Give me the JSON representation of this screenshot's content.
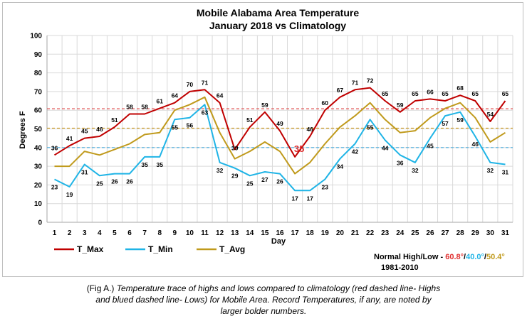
{
  "chart_data": {
    "type": "line",
    "title": "Mobile Alabama Area Temperature",
    "subtitle": "January 2018 vs Climatology",
    "xlabel": "Day",
    "ylabel": "Degrees F",
    "ylim": [
      0,
      100
    ],
    "yticks": [
      "0",
      "10",
      "20",
      "30",
      "40",
      "50",
      "60",
      "70",
      "80",
      "90",
      "100"
    ],
    "x": [
      "1",
      "2",
      "3",
      "4",
      "5",
      "6",
      "7",
      "8",
      "9",
      "10",
      "11",
      "12",
      "13",
      "14",
      "15",
      "16",
      "17",
      "18",
      "19",
      "20",
      "21",
      "22",
      "23",
      "24",
      "25",
      "26",
      "27",
      "28",
      "29",
      "30",
      "31"
    ],
    "grid": true,
    "legend_position": "bottom-left",
    "series": [
      {
        "name": "T_Max",
        "color": "#c00000",
        "values": [
          36,
          41,
          45,
          46,
          51,
          58,
          58,
          61,
          64,
          70,
          71,
          64,
          39,
          51,
          59,
          49,
          35,
          46,
          60,
          67,
          71,
          72,
          65,
          59,
          65,
          66,
          65,
          68,
          65,
          54,
          65
        ],
        "labels": [
          "36",
          "41",
          "45",
          "46",
          "51",
          "58",
          "58",
          "61",
          "64",
          "70",
          "71",
          "64",
          "39",
          "51",
          "59",
          "49",
          "35",
          "46",
          "60",
          "67",
          "71",
          "72",
          "65",
          "59",
          "65",
          "66",
          "65",
          "68",
          "65",
          "54",
          "65"
        ],
        "record_day_index": 16
      },
      {
        "name": "T_Min",
        "color": "#1fb4e6",
        "values": [
          23,
          19,
          31,
          25,
          26,
          26,
          35,
          35,
          55,
          56,
          63,
          32,
          29,
          25,
          27,
          26,
          17,
          17,
          23,
          34,
          42,
          55,
          44,
          36,
          32,
          45,
          57,
          59,
          46,
          32,
          31
        ],
        "labels": [
          "23",
          "19",
          "31",
          "25",
          "26",
          "26",
          "35",
          "35",
          "55",
          "56",
          "63",
          "32",
          "29",
          "25",
          "27",
          "26",
          "17",
          "17",
          "23",
          "34",
          "42",
          "55",
          "44",
          "36",
          "32",
          "45",
          "57",
          "59",
          "46",
          "32",
          "31"
        ]
      },
      {
        "name": "T_Avg",
        "color": "#c09a1c",
        "values": [
          30,
          30,
          38,
          36,
          39,
          42,
          47,
          48,
          60,
          63,
          67,
          48,
          34,
          38,
          43,
          38,
          26,
          32,
          42,
          51,
          57,
          64,
          55,
          48,
          49,
          56,
          61,
          64,
          56,
          43,
          48
        ]
      }
    ],
    "normals": {
      "high": 60.8,
      "low": 40.0,
      "avg": 50.4,
      "high_color": "#e05050",
      "low_color": "#4fb0e0",
      "avg_color": "#d4a020"
    },
    "normals_text": {
      "prefix": "Normal High/Low - ",
      "high": "60.8°",
      "sep1": "/",
      "low": "40.0°",
      "sep2": "/",
      "avg": "50.4°",
      "period": "1981-2010"
    }
  },
  "caption": {
    "lead": "(Fig A.) ",
    "rest": "Temperature trace of highs and lows compared to climatology (red dashed line- Highs and blued dashed line- Lows) for Mobile Area. Record Temperatures, if any, are noted by larger bolder numbers."
  }
}
